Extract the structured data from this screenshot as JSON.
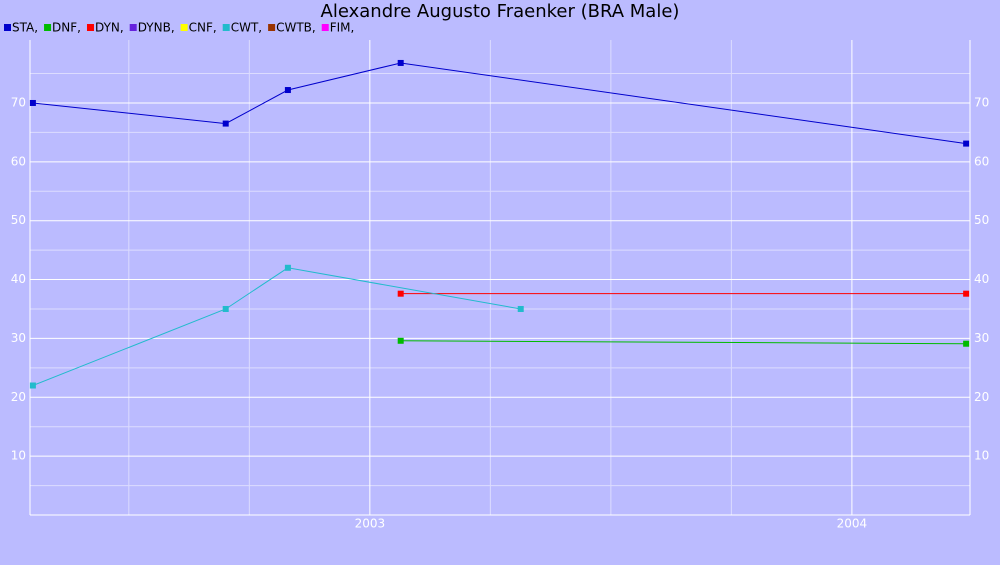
{
  "chart_data": {
    "type": "line",
    "title": "Alexandre Augusto Fraenker (BRA Male)",
    "xlim": [
      2002.295,
      2004.245
    ],
    "xticks": [
      2003,
      2004
    ],
    "x_minor_ticks": [
      2002.5,
      2002.75,
      2003.25,
      2003.5,
      2003.75
    ],
    "ylim": [
      0,
      80.7
    ],
    "yticks": [
      10,
      20,
      30,
      40,
      50,
      60,
      70
    ],
    "y_minor_ticks": [
      5,
      15,
      25,
      35,
      45,
      55,
      65,
      75
    ],
    "grid": true,
    "series": [
      {
        "name": "STA,",
        "color": "#0000cc",
        "x": [
          2002.301,
          2002.701,
          2002.83,
          2003.064,
          2004.237
        ],
        "values": [
          70,
          66.5,
          72.2,
          76.8,
          63.1
        ]
      },
      {
        "name": "DNF,",
        "color": "#00bb00",
        "x": [
          2003.064,
          2004.237
        ],
        "values": [
          29.6,
          29.1
        ]
      },
      {
        "name": "DYN,",
        "color": "#ff0000",
        "x": [
          2003.064,
          2004.237
        ],
        "values": [
          37.6,
          37.6
        ]
      },
      {
        "name": "DYNB,",
        "color": "#6622dd",
        "x": [],
        "values": []
      },
      {
        "name": "CNF,",
        "color": "#ffff00",
        "x": [],
        "values": []
      },
      {
        "name": "CWT,",
        "color": "#22bbcc",
        "x": [
          2002.301,
          2002.701,
          2002.83,
          2003.313
        ],
        "values": [
          22,
          35,
          42,
          35
        ]
      },
      {
        "name": "CWTB,",
        "color": "#993300",
        "x": [],
        "values": []
      },
      {
        "name": "FIM,",
        "color": "#ff00ff",
        "x": [],
        "values": []
      }
    ]
  }
}
